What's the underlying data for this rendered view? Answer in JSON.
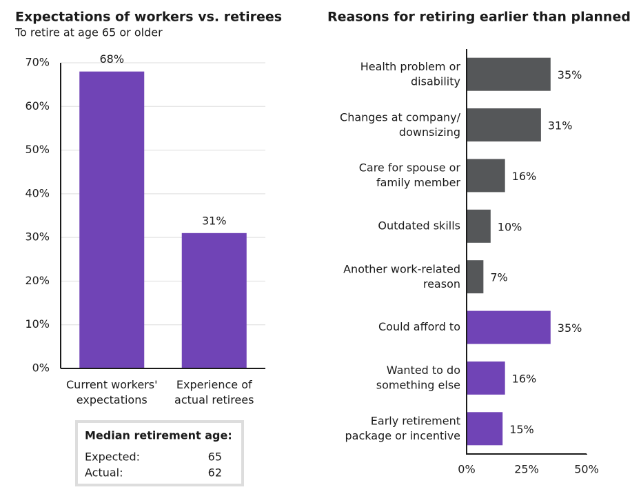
{
  "chart_data": [
    {
      "type": "bar",
      "title": "Expectations of workers vs. retirees",
      "subtitle": "To retire at age 65 or older",
      "categories": [
        "Current workers'\nexpectations",
        "Experience of\nactual retirees"
      ],
      "values": [
        68,
        31
      ],
      "value_labels": [
        "68%",
        "31%"
      ],
      "color": "#7044b6",
      "ylim": [
        0,
        70
      ],
      "yticks": [
        {
          "value": 0,
          "label": "0%"
        },
        {
          "value": 10,
          "label": "10%"
        },
        {
          "value": 20,
          "label": "20%"
        },
        {
          "value": 30,
          "label": "30%"
        },
        {
          "value": 40,
          "label": "40%"
        },
        {
          "value": 50,
          "label": "50%"
        },
        {
          "value": 60,
          "label": "60%"
        },
        {
          "value": 70,
          "label": "70%"
        }
      ],
      "grid": true
    },
    {
      "type": "hbar",
      "title": "Reasons for retiring earlier than planned",
      "categories": [
        "Health problem or\ndisability",
        "Changes at company/\ndownsizing",
        "Care for spouse or\nfamily member",
        "Outdated skills",
        "Another work-related\nreason",
        "Could afford to",
        "Wanted to do\nsomething else",
        "Early retirement\npackage or incentive"
      ],
      "values": [
        35,
        31,
        16,
        10,
        7,
        35,
        16,
        15
      ],
      "value_labels": [
        "35%",
        "31%",
        "16%",
        "10%",
        "7%",
        "35%",
        "16%",
        "15%"
      ],
      "colors": [
        "#555759",
        "#555759",
        "#555759",
        "#555759",
        "#555759",
        "#7044b6",
        "#7044b6",
        "#7044b6"
      ],
      "xlim": [
        0,
        50
      ],
      "xticks": [
        {
          "value": 0,
          "label": "0%"
        },
        {
          "value": 25,
          "label": "25%"
        },
        {
          "value": 50,
          "label": "50%"
        }
      ]
    }
  ],
  "median_box": {
    "title": "Median retirement age:",
    "rows": [
      [
        "Expected:",
        65
      ],
      [
        "Actual:",
        62
      ]
    ]
  }
}
